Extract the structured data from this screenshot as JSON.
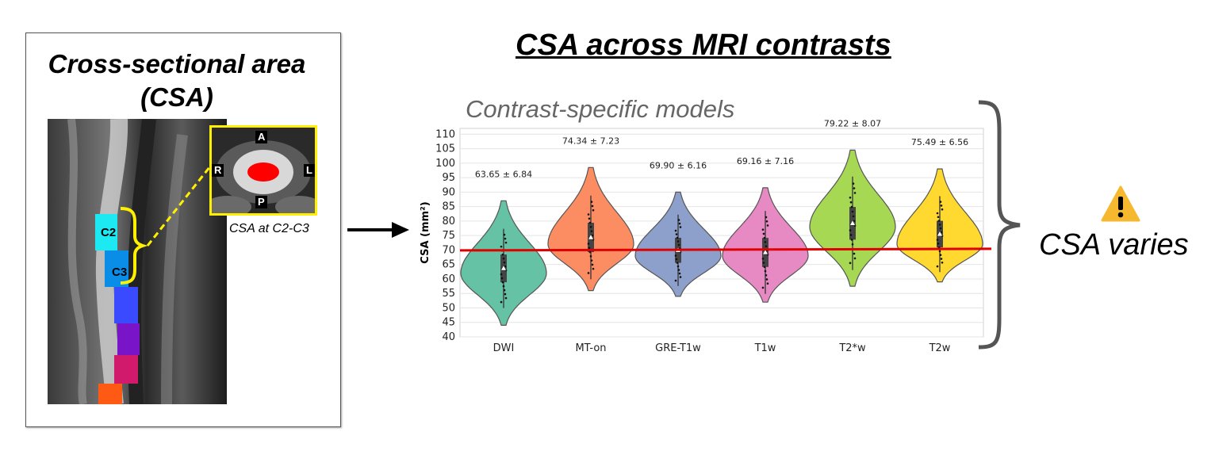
{
  "left_panel": {
    "title_line1": "Cross-sectional area",
    "title_line2": "(CSA)",
    "inset_labels": {
      "a": "A",
      "r": "R",
      "l": "L",
      "p": "P"
    },
    "vertebra_labels": [
      "C2",
      "C3"
    ],
    "caption": "CSA at C2-C3"
  },
  "main_title": "CSA across MRI contrasts",
  "subtitle": "Contrast-specific models",
  "result": {
    "label": "CSA varies",
    "icon": "warning-icon"
  },
  "colors": {
    "reference_line": "#e00000",
    "DWI": "#66c2a5",
    "MT-on": "#fc8d62",
    "GRE-T1w": "#8da0cb",
    "T1w": "#e78ac3",
    "T2*w": "#a6d854",
    "T2w": "#ffd92f",
    "inset_border": "#ffef00",
    "warning": "#f5b82e"
  },
  "chart_data": {
    "type": "violin",
    "ylabel": "CSA (mm²)",
    "ylim": [
      40,
      112
    ],
    "yticks": [
      40,
      45,
      50,
      55,
      60,
      65,
      70,
      75,
      80,
      85,
      90,
      95,
      100,
      105,
      110
    ],
    "grid": true,
    "reference_line": 70,
    "categories": [
      "DWI",
      "MT-on",
      "GRE-T1w",
      "T1w",
      "T2*w",
      "T2w"
    ],
    "means": [
      63.65,
      74.34,
      69.9,
      69.16,
      79.22,
      75.49
    ],
    "sds": [
      6.84,
      7.23,
      6.16,
      7.16,
      8.07,
      6.56
    ],
    "annotations": [
      "63.65 ± 6.84",
      "74.34 ± 7.23",
      "69.90 ± 6.16",
      "69.16 ± 7.16",
      "79.22 ± 8.07",
      "75.49 ± 6.56"
    ],
    "violin_ranges": [
      [
        44,
        87
      ],
      [
        56,
        98.5
      ],
      [
        54,
        90
      ],
      [
        52,
        91.5
      ],
      [
        57.5,
        104.5
      ],
      [
        59,
        98
      ]
    ],
    "violin_modes": [
      62,
      72,
      68,
      68,
      78,
      72
    ]
  }
}
